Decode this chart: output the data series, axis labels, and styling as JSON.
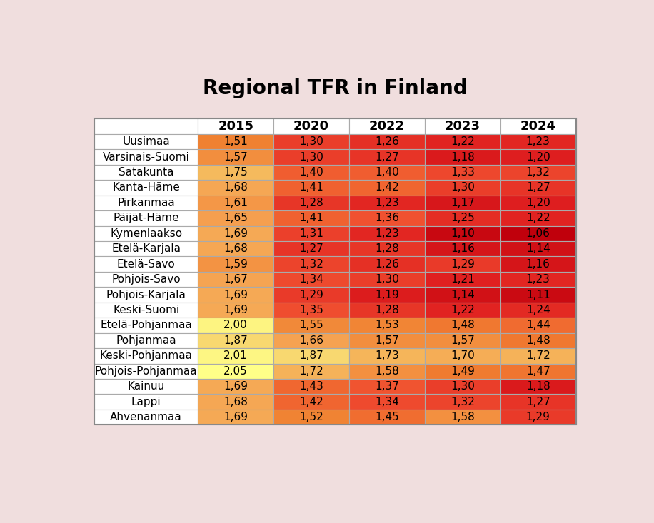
{
  "title": "Regional TFR in Finland",
  "columns": [
    "2015",
    "2020",
    "2022",
    "2023",
    "2024"
  ],
  "rows": [
    "Uusimaa",
    "Varsinais-Suomi",
    "Satakunta",
    "Kanta-Häme",
    "Pirkanmaa",
    "Päijät-Häme",
    "Kymenlaakso",
    "Etelä-Karjala",
    "Etelä-Savo",
    "Pohjois-Savo",
    "Pohjois-Karjala",
    "Keski-Suomi",
    "Etelä-Pohjanmaa",
    "Pohjanmaa",
    "Keski-Pohjanmaa",
    "Pohjois-Pohjanmaa",
    "Kainuu",
    "Lappi",
    "Ahvenanmaa"
  ],
  "values": [
    [
      1.51,
      1.3,
      1.26,
      1.22,
      1.23
    ],
    [
      1.57,
      1.3,
      1.27,
      1.18,
      1.2
    ],
    [
      1.75,
      1.4,
      1.4,
      1.33,
      1.32
    ],
    [
      1.68,
      1.41,
      1.42,
      1.3,
      1.27
    ],
    [
      1.61,
      1.28,
      1.23,
      1.17,
      1.2
    ],
    [
      1.65,
      1.41,
      1.36,
      1.25,
      1.22
    ],
    [
      1.69,
      1.31,
      1.23,
      1.1,
      1.06
    ],
    [
      1.68,
      1.27,
      1.28,
      1.16,
      1.14
    ],
    [
      1.59,
      1.32,
      1.26,
      1.29,
      1.16
    ],
    [
      1.67,
      1.34,
      1.3,
      1.21,
      1.23
    ],
    [
      1.69,
      1.29,
      1.19,
      1.14,
      1.11
    ],
    [
      1.69,
      1.35,
      1.28,
      1.22,
      1.24
    ],
    [
      2.0,
      1.55,
      1.53,
      1.48,
      1.44
    ],
    [
      1.87,
      1.66,
      1.57,
      1.57,
      1.48
    ],
    [
      2.01,
      1.87,
      1.73,
      1.7,
      1.72
    ],
    [
      2.05,
      1.72,
      1.58,
      1.49,
      1.47
    ],
    [
      1.69,
      1.43,
      1.37,
      1.3,
      1.18
    ],
    [
      1.68,
      1.42,
      1.34,
      1.32,
      1.27
    ],
    [
      1.69,
      1.52,
      1.45,
      1.58,
      1.29
    ]
  ],
  "vmin": 1.06,
  "vmax": 2.05,
  "background_color": "#f0dede",
  "title_fontsize": 20,
  "cell_fontsize": 11,
  "header_fontsize": 13,
  "row_label_fontsize": 11,
  "color_stops": [
    [
      0.0,
      "#C0000C"
    ],
    [
      0.15,
      "#E02020"
    ],
    [
      0.3,
      "#F05030"
    ],
    [
      0.45,
      "#F08030"
    ],
    [
      0.6,
      "#F5A050"
    ],
    [
      0.72,
      "#F5C060"
    ],
    [
      0.82,
      "#F8D870"
    ],
    [
      0.9,
      "#FAE87A"
    ],
    [
      1.0,
      "#FFFF88"
    ]
  ]
}
